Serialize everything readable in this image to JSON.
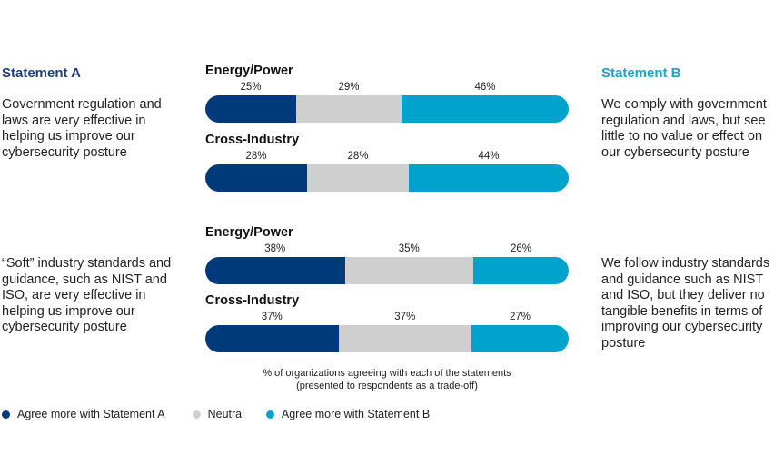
{
  "statement_a": {
    "heading": "Statement A",
    "texts": [
      "Government regulation and laws are very effective in helping us improve our cybersecurity posture",
      "“Soft” industry standards and guidance, such as NIST and ISO, are very effective in helping us improve our cybersecurity posture"
    ]
  },
  "statement_b": {
    "heading": "Statement B",
    "texts": [
      "We comply with government regulation and laws, but see little to no value or effect on our cybersecurity posture",
      "We follow industry standards and guidance such as NIST and ISO, but they deliver no tangible benefits in terms of improving our cybersecurity posture"
    ]
  },
  "colors": {
    "statement_a": "#003a7a",
    "neutral": "#cfcfcf",
    "statement_b": "#00a3cc"
  },
  "chart_data": {
    "type": "bar",
    "orientation": "horizontal-stacked-100",
    "series_names": [
      "Agree more with Statement A",
      "Neutral",
      "Agree more with Statement B"
    ],
    "groups": [
      {
        "label": "Energy/Power",
        "values": [
          25,
          29,
          46
        ],
        "labels": [
          "25%",
          "29%",
          "46%"
        ]
      },
      {
        "label": "Cross-Industry",
        "values": [
          28,
          28,
          44
        ],
        "labels": [
          "28%",
          "28%",
          "44%"
        ]
      },
      {
        "label": "Energy/Power",
        "values": [
          38,
          35,
          26
        ],
        "labels": [
          "38%",
          "35%",
          "26%"
        ]
      },
      {
        "label": "Cross-Industry",
        "values": [
          37,
          37,
          27
        ],
        "labels": [
          "37%",
          "37%",
          "27%"
        ]
      }
    ],
    "note_line1": "% of organizations agreeing with each of the statements",
    "note_line2": "(presented to respondents as a trade-off)",
    "legend": [
      "Agree more with Statement A",
      "Neutral",
      "Agree more with Statement B"
    ]
  }
}
